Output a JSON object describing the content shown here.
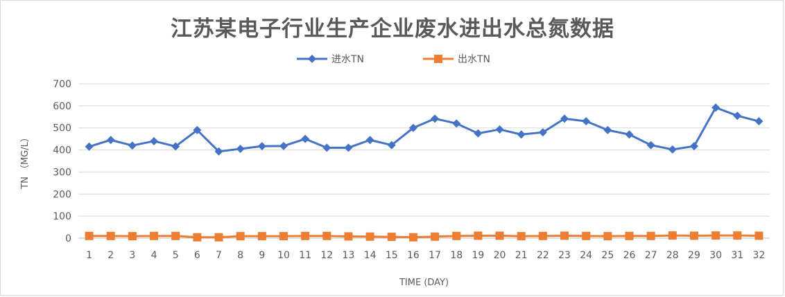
{
  "chart_data": {
    "type": "line",
    "title": "江苏某电子行业生产企业废水进出水总氮数据",
    "xlabel": "TIME (DAY)",
    "ylabel": "TN （MG/L）",
    "ylim": [
      0,
      700
    ],
    "yticks": [
      0,
      100,
      200,
      300,
      400,
      500,
      600,
      700
    ],
    "grid": true,
    "legend_position": "top",
    "categories": [
      "1",
      "2",
      "3",
      "4",
      "5",
      "6",
      "7",
      "8",
      "9",
      "10",
      "11",
      "12",
      "13",
      "14",
      "15",
      "16",
      "17",
      "18",
      "19",
      "20",
      "21",
      "22",
      "23",
      "24",
      "25",
      "26",
      "27",
      "28",
      "29",
      "30",
      "31",
      "32"
    ],
    "series": [
      {
        "name": "进水TN",
        "color": "#4472c4",
        "marker": "diamond",
        "values": [
          415,
          445,
          420,
          440,
          416,
          490,
          393,
          405,
          417,
          418,
          450,
          410,
          410,
          445,
          422,
          500,
          542,
          520,
          475,
          493,
          470,
          480,
          542,
          530,
          490,
          470,
          422,
          402,
          417,
          592,
          555,
          530
        ]
      },
      {
        "name": "出水TN",
        "color": "#ed7d31",
        "marker": "square",
        "values": [
          10,
          10,
          9,
          10,
          10,
          4,
          4,
          9,
          9,
          9,
          10,
          10,
          8,
          7,
          6,
          4,
          7,
          10,
          11,
          11,
          9,
          10,
          11,
          10,
          9,
          10,
          10,
          12,
          11,
          12,
          12,
          11
        ]
      }
    ]
  }
}
